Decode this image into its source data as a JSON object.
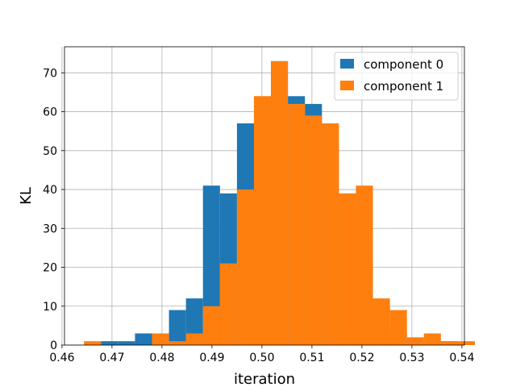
{
  "chart_data": {
    "type": "bar",
    "xlabel": "iteration",
    "ylabel": "KL",
    "xlim": [
      0.4605,
      0.5405
    ],
    "ylim": [
      0,
      76.7
    ],
    "xticks": [
      0.46,
      0.47,
      0.48,
      0.49,
      0.5,
      0.51,
      0.52,
      0.53,
      0.54
    ],
    "xtick_labels": [
      "0.46",
      "0.47",
      "0.48",
      "0.49",
      "0.50",
      "0.51",
      "0.52",
      "0.53",
      "0.54"
    ],
    "yticks": [
      0,
      10,
      20,
      30,
      40,
      50,
      60,
      70
    ],
    "ytick_labels": [
      "0",
      "10",
      "20",
      "30",
      "40",
      "50",
      "60",
      "70"
    ],
    "grid": true,
    "legend_position": "top-right",
    "series": [
      {
        "name": "component 0",
        "color": "#1f77b4",
        "bin_width": 0.0034,
        "bins": [
          [
            0.4678,
            1
          ],
          [
            0.4712,
            1
          ],
          [
            0.4746,
            3
          ],
          [
            0.478,
            0
          ],
          [
            0.4814,
            9
          ],
          [
            0.4848,
            12
          ],
          [
            0.4882,
            41
          ],
          [
            0.4916,
            39
          ],
          [
            0.495,
            57
          ],
          [
            0.4984,
            59
          ],
          [
            0.5018,
            73
          ],
          [
            0.5052,
            64
          ],
          [
            0.5086,
            62
          ],
          [
            0.512,
            52
          ],
          [
            0.5154,
            35
          ],
          [
            0.5188,
            21
          ],
          [
            0.5222,
            10
          ],
          [
            0.5256,
            3
          ],
          [
            0.529,
            1
          ],
          [
            0.5324,
            0
          ],
          [
            0.5358,
            1
          ]
        ]
      },
      {
        "name": "component 1",
        "color": "#ff7f0e",
        "bin_width": 0.0034,
        "bins": [
          [
            0.4644,
            1
          ],
          [
            0.4678,
            0
          ],
          [
            0.4712,
            0
          ],
          [
            0.4746,
            0
          ],
          [
            0.478,
            3
          ],
          [
            0.4814,
            1
          ],
          [
            0.4848,
            3
          ],
          [
            0.4882,
            10
          ],
          [
            0.4916,
            21
          ],
          [
            0.495,
            40
          ],
          [
            0.4984,
            64
          ],
          [
            0.5018,
            73
          ],
          [
            0.5052,
            62
          ],
          [
            0.5086,
            59
          ],
          [
            0.512,
            57
          ],
          [
            0.5154,
            39
          ],
          [
            0.5188,
            41
          ],
          [
            0.5222,
            12
          ],
          [
            0.5256,
            9
          ],
          [
            0.529,
            2
          ],
          [
            0.5324,
            3
          ],
          [
            0.5358,
            1
          ],
          [
            0.5392,
            1
          ]
        ]
      }
    ]
  }
}
